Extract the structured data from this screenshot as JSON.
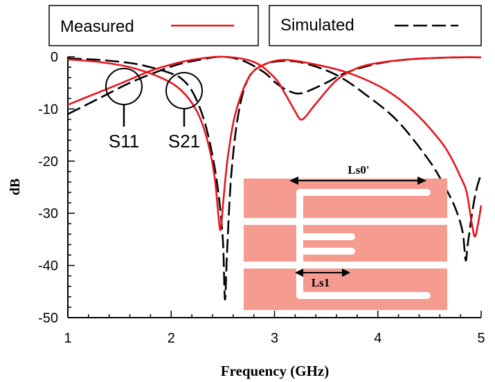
{
  "chart_data": {
    "type": "line",
    "title": "",
    "xlabel": "Frequency (GHz)",
    "ylabel": "dB",
    "xlim": [
      1,
      5
    ],
    "ylim": [
      -50,
      0
    ],
    "x_ticks": [
      "1",
      "2",
      "3",
      "4",
      "5"
    ],
    "y_ticks": [
      "0",
      "-10",
      "-20",
      "-30",
      "-40",
      "-50"
    ],
    "legend": {
      "placement": "top",
      "entries": [
        {
          "label": "Measured",
          "color": "#e8141b",
          "style": "solid"
        },
        {
          "label": "Simulated",
          "color": "#000000",
          "style": "dashed"
        }
      ]
    },
    "series": [
      {
        "name": "Measured S11",
        "color": "#e8141b",
        "style": "solid",
        "x": [
          1.0,
          1.2,
          1.5,
          1.8,
          2.0,
          2.2,
          2.5,
          2.8,
          3.0,
          3.1,
          3.2,
          3.25,
          3.3,
          3.4,
          3.6,
          3.8,
          4.0,
          4.3,
          4.6,
          4.8,
          5.0
        ],
        "y": [
          -9.2,
          -7.6,
          -5.2,
          -2.7,
          -1.5,
          -0.6,
          0.0,
          -1.0,
          -4.0,
          -7.0,
          -10.5,
          -12.0,
          -11.5,
          -9.0,
          -4.5,
          -2.2,
          -1.2,
          -0.5,
          -0.2,
          -0.1,
          -0.1
        ]
      },
      {
        "name": "Measured S21",
        "color": "#e8141b",
        "style": "solid",
        "x": [
          1.0,
          1.3,
          1.6,
          1.9,
          2.1,
          2.25,
          2.35,
          2.42,
          2.46,
          2.48,
          2.51,
          2.55,
          2.62,
          2.75,
          2.9,
          3.1,
          3.4,
          3.7,
          4.0,
          4.2,
          4.4,
          4.6,
          4.7,
          4.8,
          4.86,
          4.91,
          4.94,
          4.97,
          5.0
        ],
        "y": [
          -0.5,
          -1.0,
          -2.0,
          -4.0,
          -6.5,
          -10.5,
          -16.0,
          -23.0,
          -31.0,
          -33.0,
          -26.5,
          -19.0,
          -11.0,
          -4.0,
          -1.5,
          -0.6,
          -1.5,
          -3.0,
          -5.5,
          -8.0,
          -11.5,
          -16.0,
          -19.0,
          -23.0,
          -26.0,
          -32.0,
          -34.5,
          -32.0,
          -28.5
        ]
      },
      {
        "name": "Simulated S11",
        "color": "#000000",
        "style": "dashed",
        "x": [
          1.0,
          1.3,
          1.6,
          1.9,
          2.1,
          2.3,
          2.5,
          2.7,
          2.9,
          3.0,
          3.1,
          3.2,
          3.25,
          3.3,
          3.5,
          3.7,
          4.0,
          4.3,
          4.6,
          4.8,
          5.0
        ],
        "y": [
          -11.0,
          -8.0,
          -5.0,
          -2.6,
          -1.3,
          -0.5,
          0.0,
          -0.8,
          -3.0,
          -4.8,
          -6.2,
          -7.0,
          -7.0,
          -6.8,
          -5.0,
          -3.0,
          -1.3,
          -0.5,
          -0.2,
          -0.1,
          -0.1
        ]
      },
      {
        "name": "Simulated S21",
        "color": "#000000",
        "style": "dashed",
        "x": [
          1.0,
          1.3,
          1.6,
          1.8,
          2.0,
          2.1,
          2.2,
          2.3,
          2.38,
          2.45,
          2.5,
          2.52,
          2.54,
          2.58,
          2.65,
          2.75,
          2.9,
          3.1,
          3.3,
          3.6,
          3.9,
          4.2,
          4.5,
          4.65,
          4.75,
          4.82,
          4.85,
          4.87,
          4.92,
          4.96,
          5.0
        ],
        "y": [
          -0.3,
          -0.6,
          -1.2,
          -2.0,
          -3.2,
          -4.2,
          -6.5,
          -11.0,
          -17.0,
          -25.0,
          -35.0,
          -46.5,
          -38.0,
          -23.0,
          -11.0,
          -4.0,
          -1.5,
          -0.8,
          -1.3,
          -3.5,
          -7.5,
          -12.5,
          -20.0,
          -25.0,
          -29.0,
          -33.5,
          -39.0,
          -36.0,
          -29.0,
          -25.0,
          -22.5
        ]
      }
    ],
    "annotations": [
      {
        "label": "S11",
        "target_x": 1.54,
        "target_y": -6.0
      },
      {
        "label": "S21",
        "target_x": 2.13,
        "target_y": -6.6
      }
    ],
    "inset": {
      "description": "meander-line stub geometry",
      "labels": [
        "Ls0'",
        "Ls1"
      ],
      "fill_color": "#f59b90"
    }
  }
}
